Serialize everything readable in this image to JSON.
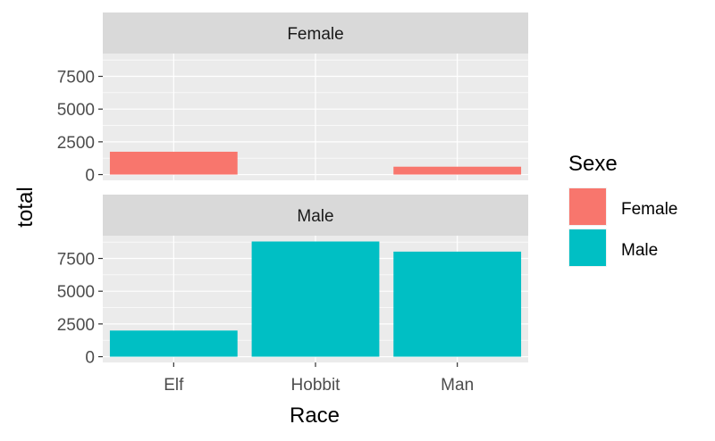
{
  "chart_data": {
    "type": "bar",
    "facet_by": "Sexe",
    "categories": [
      "Elf",
      "Hobbit",
      "Man"
    ],
    "series": [
      {
        "name": "Female",
        "values": [
          1743,
          0,
          601
        ],
        "color": "#F8766D"
      },
      {
        "name": "Male",
        "values": [
          1995,
          8796,
          8022
        ],
        "color": "#00BFC4"
      }
    ],
    "facets": [
      "Female",
      "Male"
    ],
    "xlabel": "Race",
    "ylabel": "total",
    "ylim": [
      -440,
      9240
    ],
    "yticks": [
      0,
      2500,
      5000,
      7500
    ],
    "ytick_labels": [
      "0",
      "2500",
      "5000",
      "7500"
    ],
    "legend": {
      "title": "Sexe",
      "entries": [
        "Female",
        "Male"
      ],
      "placement": "right"
    },
    "grid": true,
    "panel_background": "#EBEBEB",
    "strip_background": "#D9D9D9"
  }
}
